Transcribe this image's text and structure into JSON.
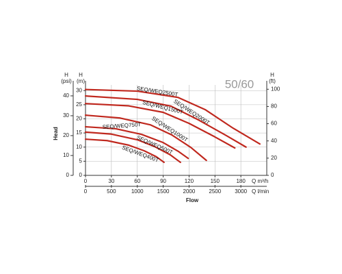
{
  "chart_data": {
    "type": "line",
    "badge": "50/60",
    "ylabel": "Head",
    "xlabel": "Flow",
    "y_title": [
      "H",
      "(m)"
    ],
    "psi_title": [
      "H",
      "(psi)"
    ],
    "y2_title": [
      "H",
      "(ft)"
    ],
    "x_unit": "Q m³/h",
    "x2_unit": "Q l/min",
    "xlim": [
      0,
      210
    ],
    "xticks": [
      0,
      30,
      60,
      90,
      120,
      150,
      180
    ],
    "x2lim": [
      0,
      3500
    ],
    "x2ticks": [
      0,
      500,
      1000,
      1500,
      2000,
      2500,
      3000
    ],
    "ylim": [
      0,
      32
    ],
    "yticks": [
      0,
      5,
      10,
      15,
      20,
      25,
      30
    ],
    "psilim": [
      0,
      45.5
    ],
    "psiticks": [
      0,
      10,
      20,
      30,
      40
    ],
    "y2lim": [
      0,
      105
    ],
    "y2ticks": [
      0,
      20,
      40,
      60,
      80,
      100
    ],
    "grid": true,
    "color": "#c0281e",
    "series": [
      {
        "name": "SEQ/WEQ2500T",
        "x": [
          0,
          60,
          107,
          139,
          171,
          202
        ],
        "values": [
          30.4,
          29.8,
          27.6,
          23.2,
          16.7,
          11.1
        ]
      },
      {
        "name": "SEQ/WEQ2000T",
        "x": [
          0,
          60,
          99,
          131,
          163,
          186
        ],
        "values": [
          28.1,
          26.9,
          24.5,
          19.6,
          14.1,
          10.0
        ]
      },
      {
        "name": "SEQ/WEQ1500T",
        "x": [
          0,
          50,
          90,
          120,
          150,
          173
        ],
        "values": [
          25.4,
          24.6,
          22.3,
          18.4,
          13.6,
          9.7
        ]
      },
      {
        "name": "SEQ/WEQ1000T",
        "x": [
          0,
          40,
          75,
          100,
          122,
          140
        ],
        "values": [
          21.3,
          20.3,
          17.9,
          14.3,
          9.9,
          5.3
        ]
      },
      {
        "name": "SEQ/WEQ750T",
        "x": [
          0,
          35,
          65,
          90,
          108,
          119
        ],
        "values": [
          17.2,
          16.5,
          14.5,
          11.6,
          8.4,
          6.0
        ]
      },
      {
        "name": "SEQ/WEQ500T",
        "x": [
          0,
          30,
          60,
          80,
          98,
          110
        ],
        "values": [
          15.3,
          14.6,
          12.6,
          10.2,
          7.3,
          4.6
        ]
      },
      {
        "name": "SEQ/WEQ400T",
        "x": [
          0,
          25,
          50,
          68,
          82,
          91
        ],
        "values": [
          12.8,
          12.3,
          10.7,
          8.7,
          6.6,
          4.6
        ]
      }
    ]
  }
}
